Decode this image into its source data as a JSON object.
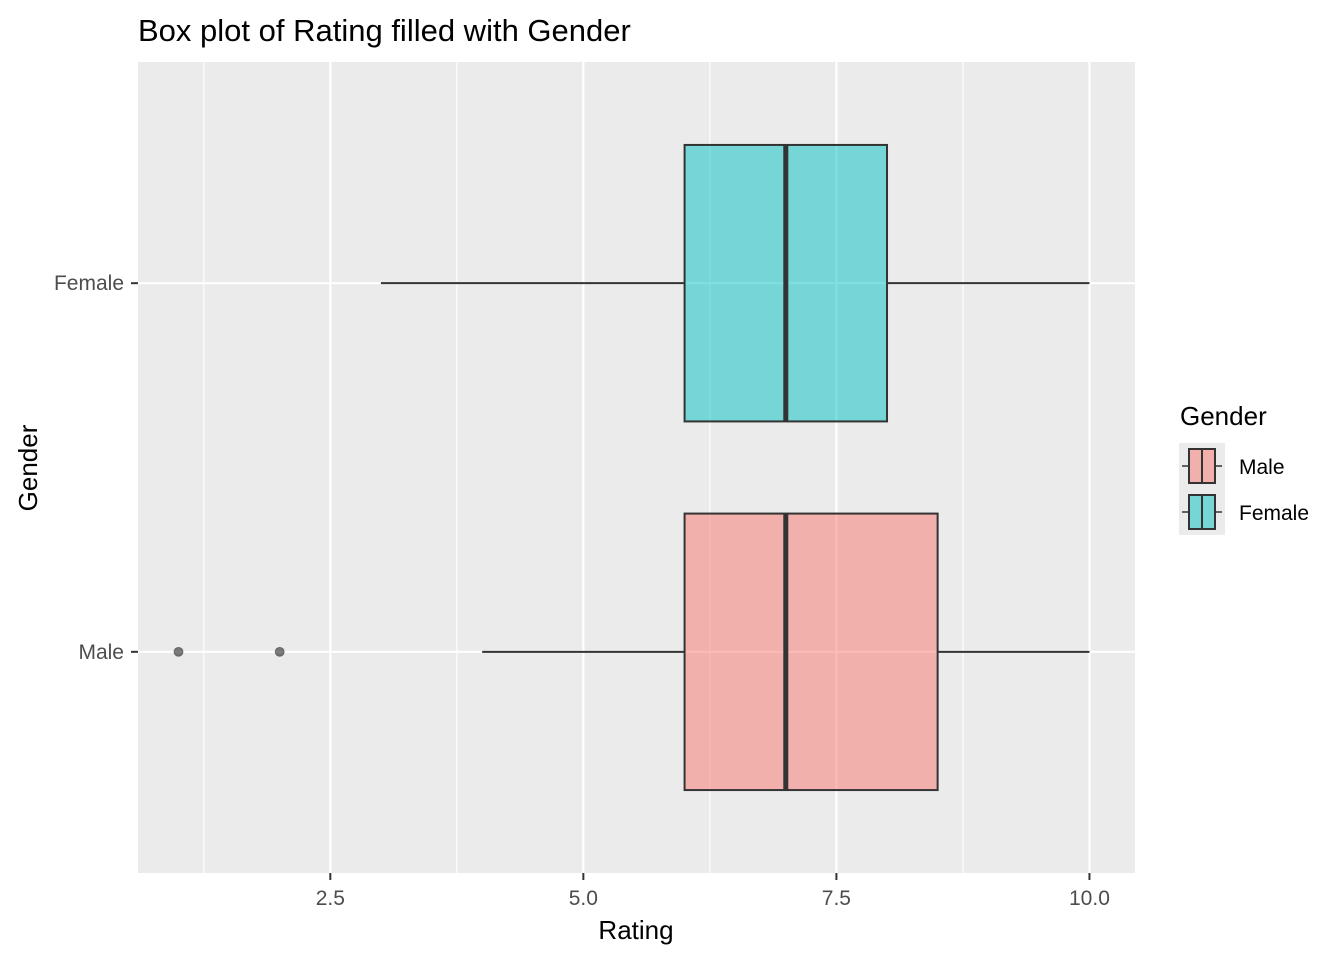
{
  "chart_data": {
    "type": "boxplot",
    "orientation": "horizontal",
    "title": "Box plot of Rating filled with Gender",
    "xlabel": "Rating",
    "ylabel": "Gender",
    "xlim": [
      0.6,
      10.45
    ],
    "xticks": [
      2.5,
      5.0,
      7.5,
      10.0
    ],
    "xtick_labels": [
      "2.5",
      "5.0",
      "7.5",
      "10.0"
    ],
    "x_minor_gridlines": [
      1.25,
      3.75,
      6.25,
      8.75
    ],
    "categories": [
      "Male",
      "Female"
    ],
    "series": [
      {
        "name": "Male",
        "color": "#F8766D",
        "whisker_low": 4,
        "q1": 6,
        "median": 7,
        "q3": 8.5,
        "whisker_high": 10,
        "outliers": [
          1,
          2
        ]
      },
      {
        "name": "Female",
        "color": "#00BFC4",
        "whisker_low": 3,
        "q1": 6,
        "median": 7,
        "q3": 8,
        "whisker_high": 10,
        "outliers": []
      }
    ],
    "legend": {
      "title": "Gender",
      "position": "right",
      "entries": [
        "Male",
        "Female"
      ]
    },
    "panel_background": "#EBEBEB",
    "grid": true
  }
}
